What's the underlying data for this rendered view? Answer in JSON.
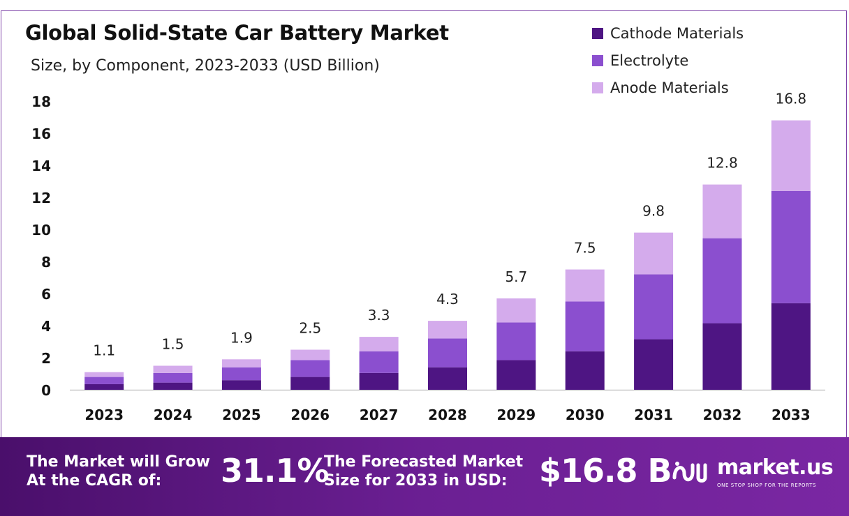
{
  "header": {
    "title": "Global Solid-State Car Battery Market",
    "subtitle": "Size, by Component, 2023-2033 (USD Billion)"
  },
  "colors": {
    "cathode": "#4e1583",
    "electrolyte": "#8b4fcf",
    "anode": "#d4abec",
    "frame": "#7b3fa6",
    "axis": "#c9c9c9"
  },
  "chart_data": {
    "type": "bar",
    "stacked": true,
    "title": "Global Solid-State Car Battery Market",
    "subtitle": "Size, by Component, 2023-2033 (USD Billion)",
    "categories": [
      "2023",
      "2024",
      "2025",
      "2026",
      "2027",
      "2028",
      "2029",
      "2030",
      "2031",
      "2032",
      "2033"
    ],
    "series": [
      {
        "name": "Cathode Materials",
        "color": "#4e1583",
        "values": [
          0.35,
          0.45,
          0.6,
          0.8,
          1.05,
          1.4,
          1.85,
          2.4,
          3.15,
          4.15,
          5.4
        ]
      },
      {
        "name": "Electrolyte",
        "color": "#8b4fcf",
        "values": [
          0.45,
          0.6,
          0.8,
          1.05,
          1.35,
          1.8,
          2.35,
          3.1,
          4.05,
          5.3,
          7.0
        ]
      },
      {
        "name": "Anode Materials",
        "color": "#d4abec",
        "values": [
          0.3,
          0.45,
          0.5,
          0.65,
          0.9,
          1.1,
          1.5,
          2.0,
          2.6,
          3.35,
          4.4
        ]
      }
    ],
    "totals": [
      "1.1",
      "1.5",
      "1.9",
      "2.5",
      "3.3",
      "4.3",
      "5.7",
      "7.5",
      "9.8",
      "12.8",
      "16.8"
    ],
    "yticks": [
      "0",
      "2",
      "4",
      "6",
      "8",
      "10",
      "12",
      "14",
      "16",
      "18"
    ],
    "ylim": [
      0,
      18
    ],
    "xlabel": "",
    "ylabel": "",
    "legend_position": "top-right",
    "grid": false
  },
  "footer": {
    "cagr_label_line1": "The Market will Grow",
    "cagr_label_line2": "At the CAGR of:",
    "cagr_value": "31.1%",
    "forecast_label_line1": "The Forecasted Market",
    "forecast_label_line2": "Size for 2033 in USD:",
    "forecast_value": "$16.8 B",
    "brand_name": "market.us",
    "brand_tagline": "ONE STOP SHOP FOR THE REPORTS"
  }
}
